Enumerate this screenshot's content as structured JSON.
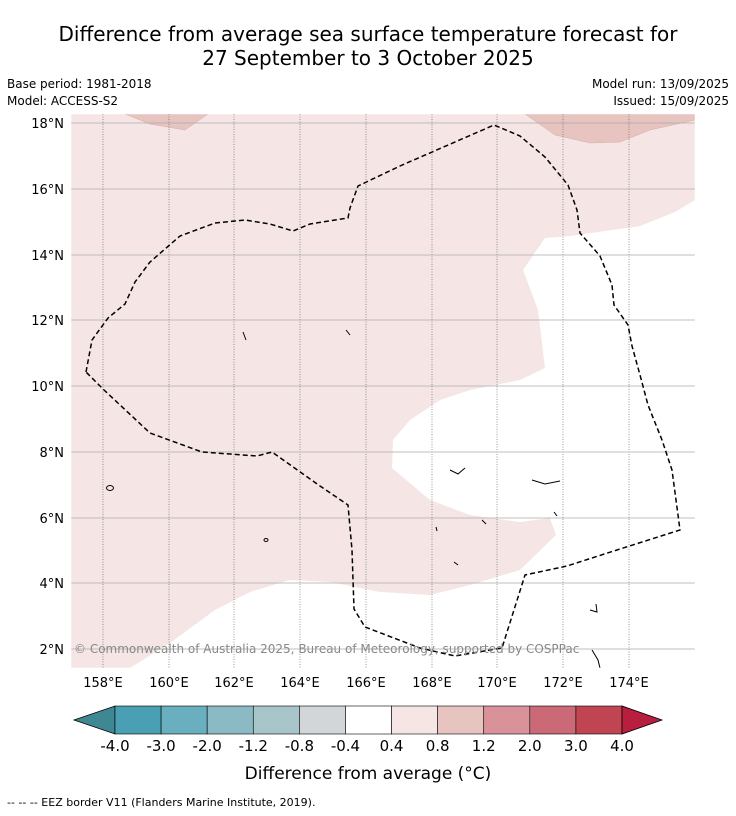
{
  "title_line1": "Difference from average sea surface temperature forecast for",
  "title_line2": "27 September to 3 October 2025",
  "base_period": "Base period: 1981-2018",
  "model": "Model: ACCESS-S2",
  "model_run": "Model run: 13/09/2025",
  "issued": "Issued: 15/09/2025",
  "copyright": "© Commonwealth of Australia 2025, Bureau of Meteorology, supported by COSPPac",
  "lon_labels": [
    "158°E",
    "160°E",
    "162°E",
    "164°E",
    "166°E",
    "168°E",
    "170°E",
    "172°E",
    "174°E"
  ],
  "lat_labels": [
    "18°N",
    "16°N",
    "14°N",
    "12°N",
    "10°N",
    "8°N",
    "6°N",
    "4°N",
    "2°N"
  ],
  "colorbar": {
    "title": "Difference from average (°C)",
    "labels": [
      "-4.0",
      "-3.0",
      "-2.0",
      "-1.2",
      "-0.8",
      "-0.4",
      "0.4",
      "0.8",
      "1.2",
      "2.0",
      "3.0",
      "4.0"
    ],
    "colors": [
      "#4a9fb4",
      "#6aafbf",
      "#8bb9c4",
      "#a8c6ca",
      "#d2d6d8",
      "#ffffff",
      "#f5e6e5",
      "#e8c4c1",
      "#d9929a",
      "#cb6a76",
      "#c04452"
    ],
    "under_color": "#3e8893",
    "over_color": "#b81e3f"
  },
  "footer": "-- -- -- EEZ border V11 (Flanders Marine Institute, 2019)."
}
